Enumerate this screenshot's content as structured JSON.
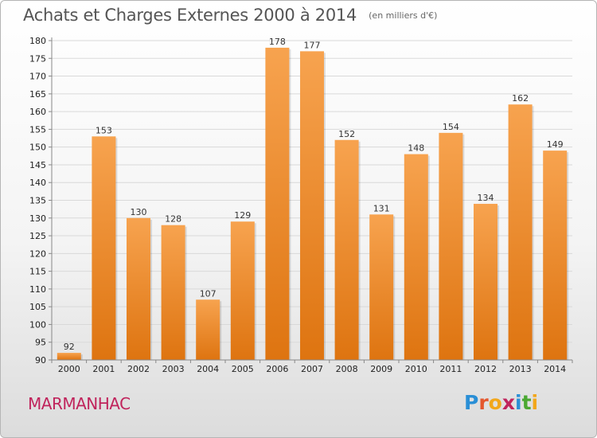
{
  "header": {
    "title": "Achats et Charges Externes 2000 à 2014",
    "subtitle": "(en milliers d'€)"
  },
  "place_name": "MARMANHAC",
  "logo": {
    "text": "Proxiti",
    "letters": [
      {
        "ch": "P",
        "color": "#2a8fd6"
      },
      {
        "ch": "r",
        "color": "#e4572e"
      },
      {
        "ch": "o",
        "color": "#f2a71b"
      },
      {
        "ch": "x",
        "color": "#c0245c"
      },
      {
        "ch": "i",
        "color": "#2a8fd6"
      },
      {
        "ch": "t",
        "color": "#4aa832"
      },
      {
        "ch": "i",
        "color": "#f2a71b"
      }
    ]
  },
  "colors": {
    "bar_top": "#f7a34f",
    "bar_bottom": "#de7410",
    "grid": "#d9d9d9",
    "axis": "#888888"
  },
  "chart_data": {
    "type": "bar",
    "title": "Achats et Charges Externes 2000 à 2014",
    "subtitle": "(en milliers d'€)",
    "xlabel": "",
    "ylabel": "",
    "categories": [
      "2000",
      "2001",
      "2002",
      "2003",
      "2004",
      "2005",
      "2006",
      "2007",
      "2008",
      "2009",
      "2010",
      "2011",
      "2012",
      "2013",
      "2014"
    ],
    "values": [
      92,
      153,
      130,
      128,
      107,
      129,
      178,
      177,
      152,
      131,
      148,
      154,
      134,
      162,
      149
    ],
    "ylim": [
      90,
      180
    ],
    "yticks": [
      90,
      95,
      100,
      105,
      110,
      115,
      120,
      125,
      130,
      135,
      140,
      145,
      150,
      155,
      160,
      165,
      170,
      175,
      180
    ],
    "grid": true,
    "legend": "none"
  }
}
